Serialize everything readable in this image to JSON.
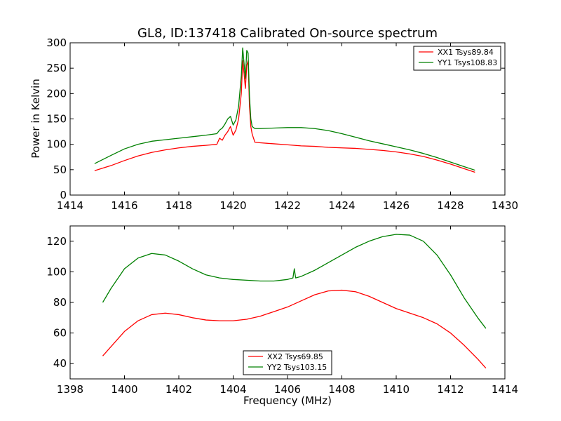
{
  "chart_data": [
    {
      "type": "line",
      "title": "GL8, ID:137418 Calibrated On-source spectrum",
      "xlabel": "",
      "ylabel": "Power in Kelvin",
      "xlim": [
        1414,
        1430
      ],
      "ylim": [
        0,
        300
      ],
      "xticks": [
        "1414",
        "1416",
        "1418",
        "1420",
        "1422",
        "1424",
        "1426",
        "1428",
        "1430"
      ],
      "yticks": [
        "0",
        "50",
        "100",
        "150",
        "200",
        "250",
        "300"
      ],
      "legend_placement": "top-right",
      "grid": false,
      "series": [
        {
          "name": "XX1 Tsys89.84",
          "color": "#ff0000",
          "x": [
            1414.9,
            1415.5,
            1416.0,
            1416.5,
            1417.0,
            1417.5,
            1418.0,
            1418.5,
            1419.0,
            1419.4,
            1419.5,
            1419.6,
            1419.7,
            1419.8,
            1419.9,
            1420.0,
            1420.1,
            1420.2,
            1420.3,
            1420.35,
            1420.4,
            1420.45,
            1420.5,
            1420.55,
            1420.6,
            1420.65,
            1420.7,
            1420.8,
            1421.0,
            1421.5,
            1422.0,
            1422.5,
            1423.0,
            1423.5,
            1424.0,
            1424.5,
            1425.0,
            1425.5,
            1426.0,
            1426.5,
            1427.0,
            1427.5,
            1428.0,
            1428.5,
            1428.9
          ],
          "y": [
            48,
            58,
            68,
            77,
            84,
            89,
            93,
            96,
            98,
            100,
            112,
            108,
            118,
            125,
            135,
            118,
            128,
            150,
            200,
            265,
            240,
            210,
            255,
            265,
            175,
            135,
            120,
            104,
            103,
            101,
            99,
            97,
            96,
            94,
            93,
            92,
            90,
            88,
            85,
            81,
            76,
            69,
            61,
            52,
            45
          ]
        },
        {
          "name": "YY1 Tsys108.83",
          "color": "#008000",
          "x": [
            1414.9,
            1415.5,
            1416.0,
            1416.5,
            1417.0,
            1417.5,
            1418.0,
            1418.5,
            1419.0,
            1419.4,
            1419.5,
            1419.6,
            1419.7,
            1419.8,
            1419.9,
            1420.0,
            1420.1,
            1420.2,
            1420.3,
            1420.35,
            1420.4,
            1420.45,
            1420.5,
            1420.55,
            1420.6,
            1420.65,
            1420.7,
            1420.8,
            1421.0,
            1421.5,
            1422.0,
            1422.5,
            1423.0,
            1423.5,
            1424.0,
            1424.5,
            1425.0,
            1425.5,
            1426.0,
            1426.5,
            1427.0,
            1427.5,
            1428.0,
            1428.5,
            1428.9
          ],
          "y": [
            62,
            78,
            91,
            100,
            106,
            109,
            112,
            115,
            118,
            121,
            128,
            132,
            140,
            150,
            155,
            138,
            148,
            175,
            235,
            290,
            260,
            230,
            285,
            280,
            195,
            150,
            135,
            131,
            131,
            132,
            133,
            133,
            131,
            127,
            121,
            114,
            107,
            101,
            95,
            89,
            82,
            74,
            65,
            56,
            49
          ]
        }
      ]
    },
    {
      "type": "line",
      "title": "",
      "xlabel": "Frequency (MHz)",
      "ylabel": "",
      "xlim": [
        1398,
        1414
      ],
      "ylim": [
        30,
        130
      ],
      "xticks": [
        "1398",
        "1400",
        "1402",
        "1404",
        "1406",
        "1408",
        "1410",
        "1412",
        "1414"
      ],
      "yticks": [
        "40",
        "60",
        "80",
        "100",
        "120"
      ],
      "legend_placement": "bottom-center",
      "grid": false,
      "series": [
        {
          "name": "XX2 Tsys69.85",
          "color": "#ff0000",
          "x": [
            1399.2,
            1399.5,
            1400.0,
            1400.5,
            1401.0,
            1401.5,
            1402.0,
            1402.5,
            1403.0,
            1403.5,
            1404.0,
            1404.5,
            1405.0,
            1405.5,
            1406.0,
            1406.5,
            1407.0,
            1407.5,
            1408.0,
            1408.5,
            1409.0,
            1409.5,
            1410.0,
            1410.5,
            1411.0,
            1411.5,
            1412.0,
            1412.5,
            1413.0,
            1413.3
          ],
          "y": [
            45,
            51,
            61,
            68,
            72,
            73,
            72,
            70,
            68.5,
            68,
            68,
            69,
            71,
            74,
            77,
            81,
            85,
            87.5,
            88,
            87,
            84,
            80,
            76,
            73,
            70,
            66,
            60,
            52,
            43,
            37
          ]
        },
        {
          "name": "YY2 Tsys103.15",
          "color": "#008000",
          "x": [
            1399.2,
            1399.5,
            1400.0,
            1400.5,
            1401.0,
            1401.5,
            1402.0,
            1402.5,
            1403.0,
            1403.5,
            1404.0,
            1404.5,
            1405.0,
            1405.5,
            1406.0,
            1406.2,
            1406.25,
            1406.3,
            1406.5,
            1407.0,
            1407.5,
            1408.0,
            1408.5,
            1409.0,
            1409.5,
            1410.0,
            1410.5,
            1411.0,
            1411.5,
            1412.0,
            1412.5,
            1413.0,
            1413.3
          ],
          "y": [
            80,
            89,
            102,
            109,
            112,
            111,
            107,
            102,
            98,
            96,
            95,
            94.5,
            94,
            94,
            95,
            96,
            102,
            96,
            97,
            101,
            106,
            111,
            116,
            120,
            123,
            124.5,
            124,
            120,
            111,
            98,
            83,
            70,
            63
          ]
        }
      ]
    }
  ]
}
